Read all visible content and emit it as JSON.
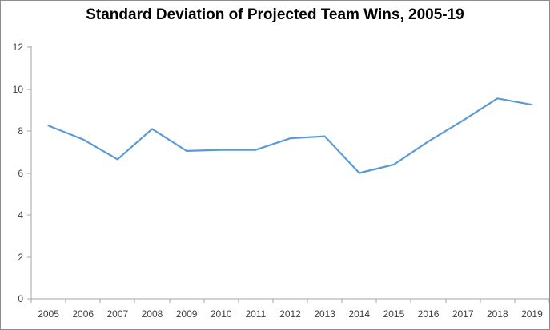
{
  "window": {
    "background_color": "#ffffff",
    "border_color": "#8c8c8c"
  },
  "chart_data": {
    "type": "line",
    "title": "Standard Deviation of Projected Team Wins, 2005-19",
    "categories": [
      "2005",
      "2006",
      "2007",
      "2008",
      "2009",
      "2010",
      "2011",
      "2012",
      "2013",
      "2014",
      "2015",
      "2016",
      "2017",
      "2018",
      "2019"
    ],
    "values": [
      8.25,
      7.6,
      6.65,
      8.1,
      7.05,
      7.1,
      7.1,
      7.65,
      7.75,
      6.0,
      6.4,
      7.5,
      8.5,
      9.55,
      9.25
    ],
    "xlabel": "",
    "ylabel": "",
    "ylim": [
      0,
      12
    ],
    "yticks": [
      0,
      2,
      4,
      6,
      8,
      10,
      12
    ],
    "grid": false,
    "legend": false,
    "line_color": "#5b9bd5",
    "axis_color": "#a6a6a6",
    "tick_label_color": "#404040",
    "title_color": "#000000"
  }
}
